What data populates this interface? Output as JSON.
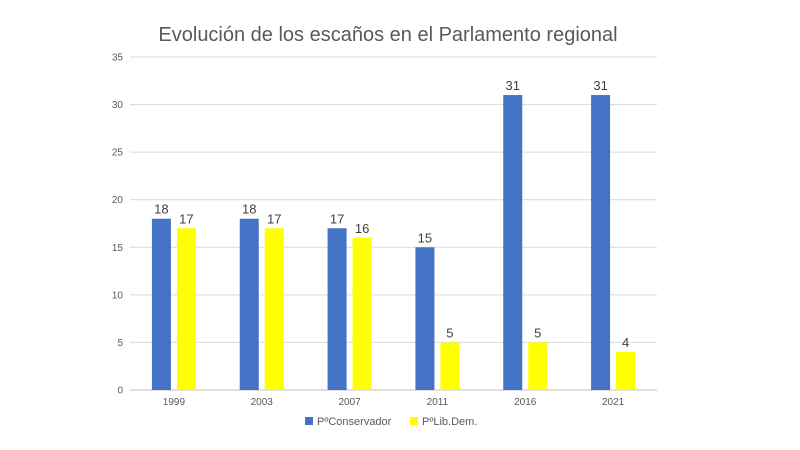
{
  "chart_data": {
    "type": "bar",
    "title": "Evolución de los escaños en el Parlamento regional",
    "categories": [
      "1999",
      "2003",
      "2007",
      "2011",
      "2016",
      "2021"
    ],
    "series": [
      {
        "name": "PºConservador",
        "values": [
          18,
          18,
          17,
          15,
          31,
          31
        ],
        "color": "#4472C4"
      },
      {
        "name": "PºLib.Dem.",
        "values": [
          17,
          17,
          16,
          5,
          5,
          4
        ],
        "color": "#FFFF00"
      }
    ],
    "ylim": [
      0,
      35
    ],
    "yticks": [
      0,
      5,
      10,
      15,
      20,
      25,
      30,
      35
    ],
    "grid": true,
    "legend": "bottom"
  }
}
